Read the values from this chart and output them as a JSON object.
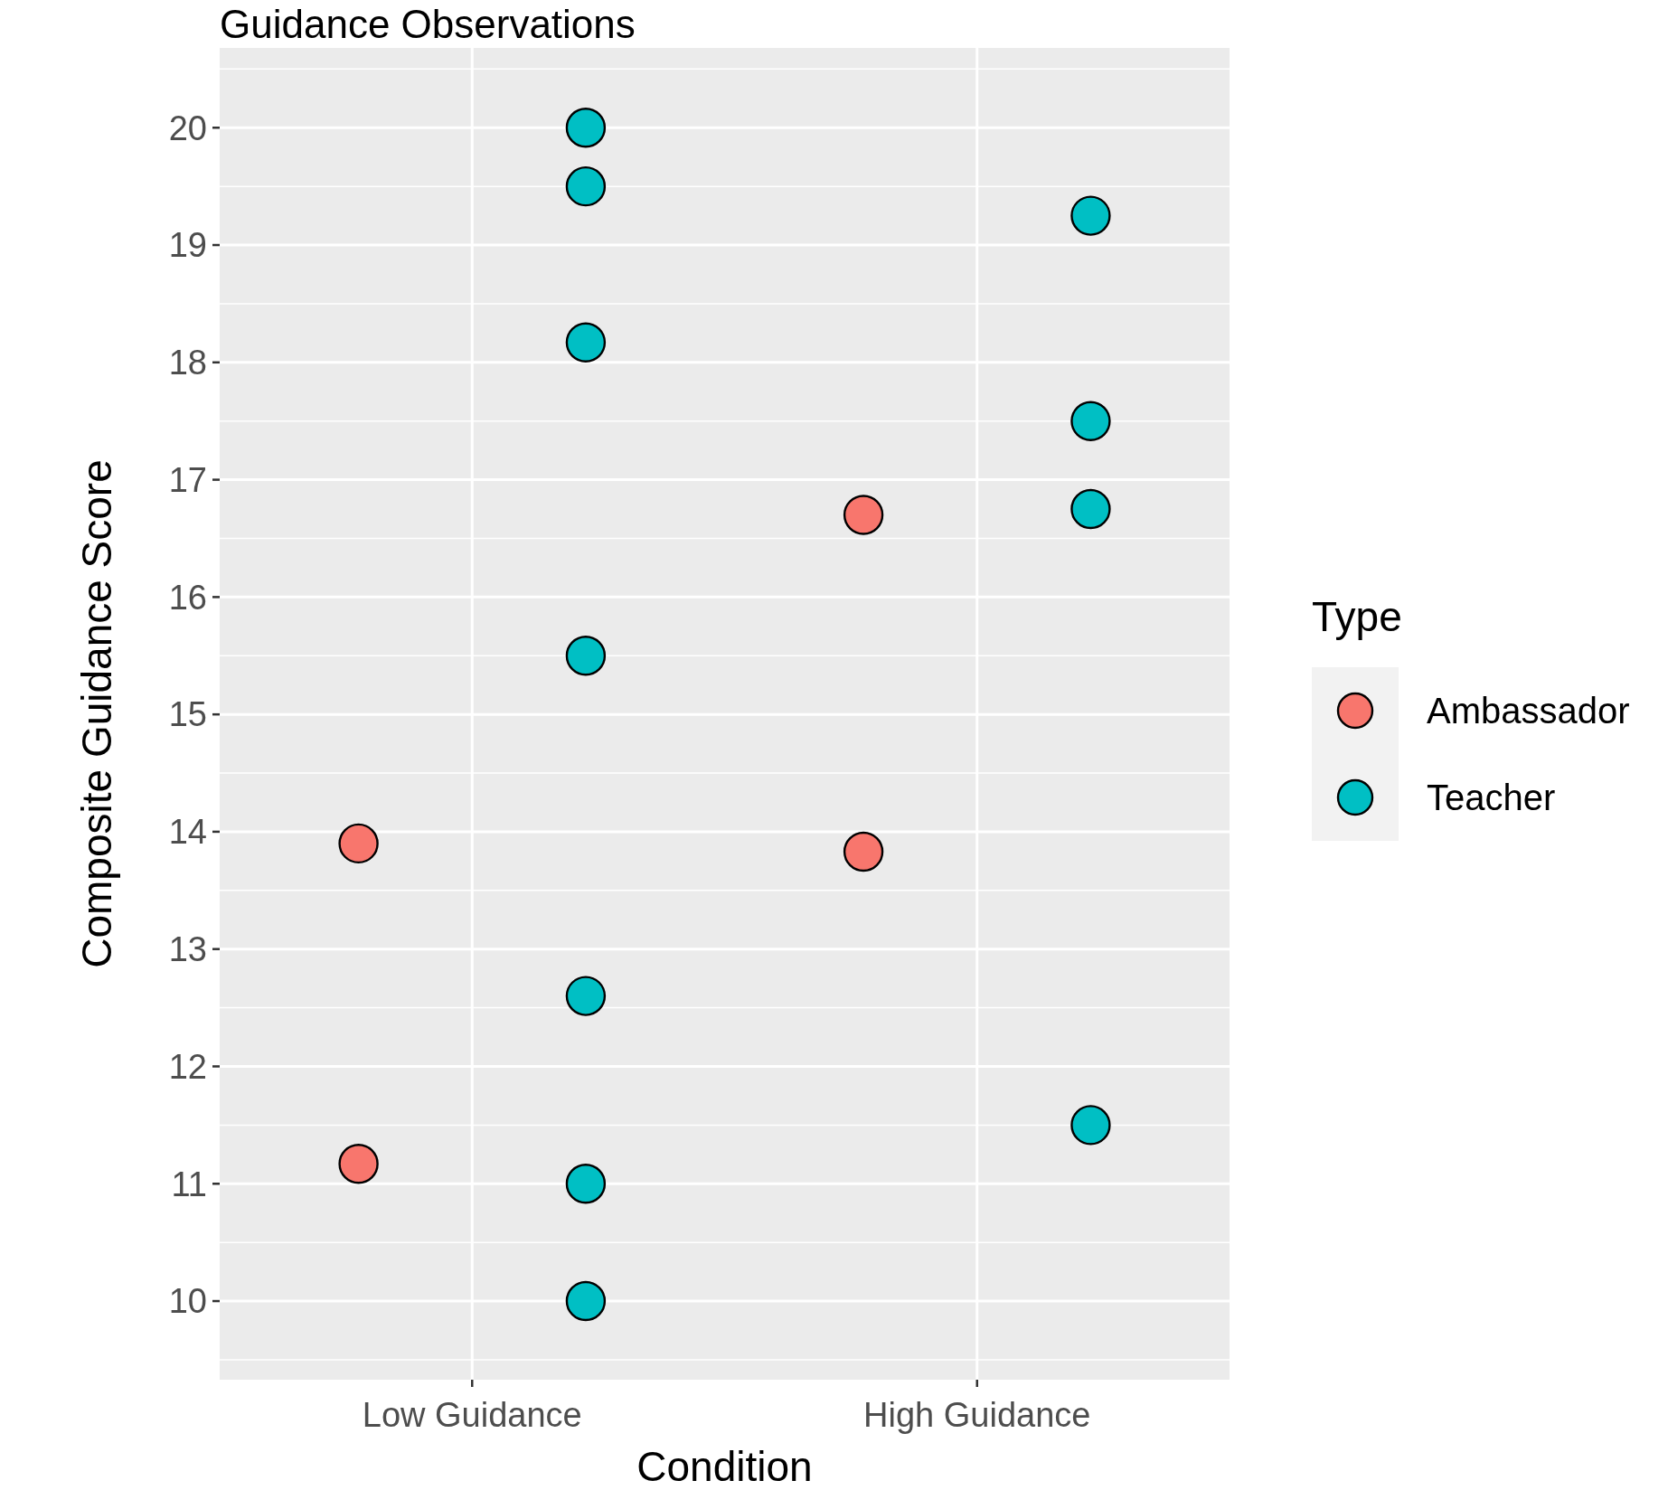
{
  "chart_data": {
    "type": "scatter",
    "title": "Guidance Observations",
    "xlabel": "Condition",
    "ylabel": "Composite Guidance Score",
    "legend_title": "Type",
    "categories": [
      "Low Guidance",
      "High Guidance"
    ],
    "series": [
      {
        "name": "Ambassador",
        "color": "#f8766d",
        "x": [
          "Low Guidance",
          "Low Guidance",
          "High Guidance",
          "High Guidance"
        ],
        "values": [
          13.9,
          11.17,
          16.7,
          13.83
        ]
      },
      {
        "name": "Teacher",
        "color": "#00bfc4",
        "x": [
          "Low Guidance",
          "Low Guidance",
          "Low Guidance",
          "Low Guidance",
          "Low Guidance",
          "Low Guidance",
          "Low Guidance",
          "High Guidance",
          "High Guidance",
          "High Guidance",
          "High Guidance"
        ],
        "values": [
          20,
          19.5,
          18.17,
          15.5,
          12.6,
          11,
          10,
          19.25,
          17.5,
          16.75,
          11.5
        ]
      }
    ],
    "ylim": [
      9.33,
      20.68
    ],
    "yticks": [
      10,
      11,
      12,
      13,
      14,
      15,
      16,
      17,
      18,
      19,
      20
    ],
    "grid": true,
    "legend": "right",
    "marker": "circle"
  }
}
